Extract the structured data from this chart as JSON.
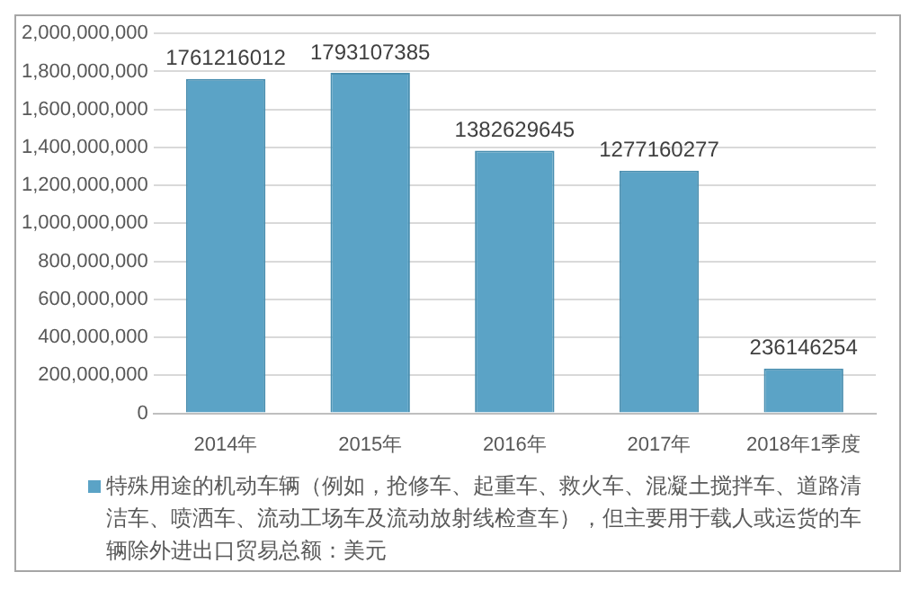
{
  "chart_data": {
    "type": "bar",
    "categories": [
      "2014年",
      "2015年",
      "2016年",
      "2017年",
      "2018年1季度"
    ],
    "series": [
      {
        "name": "特殊用途的机动车辆（例如，抢修车、起重车、救火车、混凝土搅拌车、道路清洁车、喷洒车、流动工场车及流动放射线检查车），但主要用于载人或运货的车辆除外进出口贸易总额：美元",
        "color": "#5ba3c6",
        "values": [
          1761216012,
          1793107385,
          1382629645,
          1277160277,
          236146254
        ]
      }
    ],
    "ylim": [
      0,
      2000000000
    ],
    "yticks": [
      {
        "value": 0,
        "label": "0"
      },
      {
        "value": 200000000,
        "label": "200,000,000"
      },
      {
        "value": 400000000,
        "label": "400,000,000"
      },
      {
        "value": 600000000,
        "label": "600,000,000"
      },
      {
        "value": 800000000,
        "label": "800,000,000"
      },
      {
        "value": 1000000000,
        "label": "1,000,000,000"
      },
      {
        "value": 1200000000,
        "label": "1,200,000,000"
      },
      {
        "value": 1400000000,
        "label": "1,400,000,000"
      },
      {
        "value": 1600000000,
        "label": "1,600,000,000"
      },
      {
        "value": 1800000000,
        "label": "1,800,000,000"
      },
      {
        "value": 2000000000,
        "label": "2,000,000,000"
      }
    ],
    "grid": "y",
    "legend": "bottom",
    "data_labels": true
  }
}
